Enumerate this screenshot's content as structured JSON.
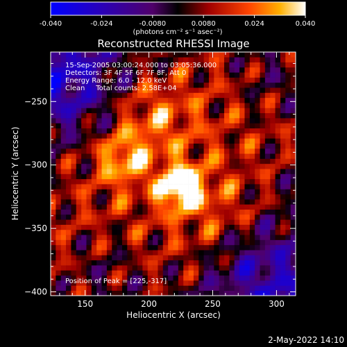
{
  "colorbar": {
    "ticks": [
      "-0.040",
      "-0.024",
      "-0.0080",
      "0.0080",
      "0.024",
      "0.040"
    ],
    "tick_values": [
      -0.04,
      -0.024,
      -0.008,
      0.008,
      0.024,
      0.04
    ],
    "units_label": "(photons cm⁻² s⁻¹ asec⁻²)"
  },
  "chart_data": {
    "type": "heatmap",
    "title": "Reconstructed RHESSI Image",
    "xlabel": "Heliocentric X (arcsec)",
    "ylabel": "Heliocentric Y (arcsec)",
    "xlim": [
      123,
      315
    ],
    "ylim": [
      -403,
      -211
    ],
    "x_ticks": [
      150,
      200,
      250,
      300
    ],
    "y_ticks": [
      -250,
      -300,
      -350,
      -400
    ],
    "x_tick_labels": [
      "150",
      "200",
      "250",
      "300"
    ],
    "y_tick_labels": [
      "−250",
      "−300",
      "−350",
      "−400"
    ],
    "color_range": [
      -0.04,
      0.04
    ],
    "peak": {
      "x": 225,
      "y": -317
    },
    "secondary_source": {
      "x": 180,
      "y": -295
    },
    "annotations": [
      "15-Sep-2005 03:00:24.000 to 03:05:36.000",
      "Detectors: 3F 4F 5F 6F 7F 8F, Att 0",
      "Energy Range: 6.0 - 12.0 keV",
      "Clean     Total counts: 2.58E+04"
    ],
    "peak_label": "Position of Peak = [225,-317]"
  },
  "footer": {
    "date": "2-May-2022 14:10"
  },
  "colors": {
    "background": "#000000",
    "text": "#ffffff"
  }
}
